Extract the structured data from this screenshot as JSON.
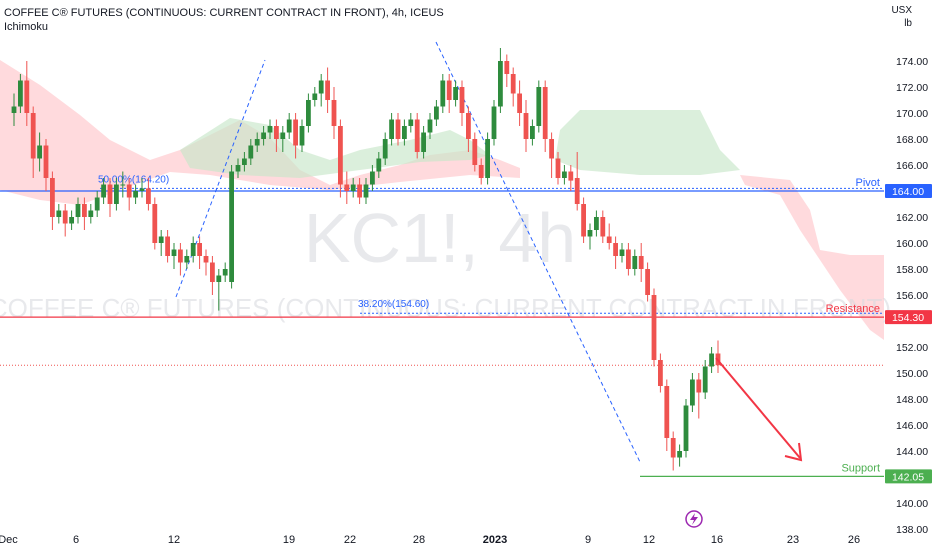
{
  "header": {
    "title": "COFFEE C® FUTURES (CONTINUOUS: CURRENT CONTRACT IN FRONT), 4h, ICEUS",
    "indicator": "Ichimoku",
    "unit_top": "USX",
    "unit_bottom": "lb"
  },
  "watermark": {
    "symbol": "KC1!, 4h",
    "description": "COFFEE C® FUTURES (CONTINUOUS: CURRENT CONTRACT IN FRONT)"
  },
  "colors": {
    "up": "#26a69a",
    "up_candle": "#2e8b3d",
    "down": "#ef5350",
    "pivot": "#2962ff",
    "resistance": "#f23645",
    "support": "#4caf50",
    "cloud_bull": "#c8e6c9",
    "cloud_bear": "#ffcdd2",
    "fib": "#2962ff",
    "arrow": "#f23645"
  },
  "chart_data": {
    "type": "candlestick",
    "title": "COFFEE C® FUTURES (CONTINUOUS: CURRENT CONTRACT IN FRONT), 4h, ICEUS",
    "yaxis": {
      "ticks": [
        "138.00",
        "140.00",
        "142.00",
        "144.00",
        "146.00",
        "148.00",
        "150.00",
        "152.00",
        "154.00",
        "156.00",
        "158.00",
        "160.00",
        "162.00",
        "164.00",
        "166.00",
        "168.00",
        "170.00",
        "172.00",
        "174.00"
      ],
      "ylim": [
        137.0,
        177.0
      ]
    },
    "xaxis": {
      "ticks": [
        "Dec",
        "6",
        "12",
        "19",
        "22",
        "28",
        "2023",
        "9",
        "12",
        "16",
        "23",
        "26"
      ]
    },
    "levels": [
      {
        "name": "Pivot",
        "value": 164.0,
        "label": "164.00"
      },
      {
        "name": "Resistance",
        "value": 154.3,
        "label": "154.30"
      },
      {
        "name": "Support",
        "value": 142.05,
        "label": "142.05"
      }
    ],
    "fibonacci": [
      {
        "label": "50.00%(164.20)",
        "value": 164.2
      },
      {
        "label": "38.20%(154.60)",
        "value": 154.6
      }
    ],
    "last_price": 150.6,
    "candles": [
      {
        "o": 170.0,
        "h": 171.5,
        "c": 170.5,
        "l": 169.0
      },
      {
        "o": 170.5,
        "h": 173.0,
        "c": 172.5,
        "l": 170.0
      },
      {
        "o": 172.5,
        "h": 174.0,
        "c": 170.0,
        "l": 169.0
      },
      {
        "o": 170.0,
        "h": 170.5,
        "c": 166.5,
        "l": 165.0
      },
      {
        "o": 166.5,
        "h": 168.5,
        "c": 167.5,
        "l": 165.5
      },
      {
        "o": 167.5,
        "h": 168.0,
        "c": 165.0,
        "l": 164.0
      },
      {
        "o": 165.0,
        "h": 165.5,
        "c": 162.0,
        "l": 161.0
      },
      {
        "o": 162.0,
        "h": 163.0,
        "c": 162.5,
        "l": 161.5
      },
      {
        "o": 162.5,
        "h": 163.0,
        "c": 161.5,
        "l": 160.5
      },
      {
        "o": 161.5,
        "h": 162.5,
        "c": 162.0,
        "l": 161.0
      },
      {
        "o": 162.0,
        "h": 163.5,
        "c": 163.0,
        "l": 161.5
      },
      {
        "o": 163.0,
        "h": 163.5,
        "c": 162.0,
        "l": 161.0
      },
      {
        "o": 162.0,
        "h": 163.0,
        "c": 162.5,
        "l": 161.5
      },
      {
        "o": 162.5,
        "h": 164.0,
        "c": 163.5,
        "l": 162.0
      },
      {
        "o": 163.5,
        "h": 165.0,
        "c": 164.5,
        "l": 163.0
      },
      {
        "o": 164.5,
        "h": 165.0,
        "c": 163.0,
        "l": 162.0
      },
      {
        "o": 163.0,
        "h": 165.0,
        "c": 164.5,
        "l": 162.5
      },
      {
        "o": 164.5,
        "h": 165.5,
        "c": 164.5,
        "l": 163.5
      },
      {
        "o": 164.5,
        "h": 165.0,
        "c": 163.5,
        "l": 162.5
      },
      {
        "o": 163.5,
        "h": 164.5,
        "c": 164.0,
        "l": 163.0
      },
      {
        "o": 164.0,
        "h": 165.0,
        "c": 164.2,
        "l": 163.5
      },
      {
        "o": 164.2,
        "h": 165.0,
        "c": 163.0,
        "l": 162.5
      },
      {
        "o": 163.0,
        "h": 163.5,
        "c": 160.0,
        "l": 159.5
      },
      {
        "o": 160.0,
        "h": 161.0,
        "c": 160.5,
        "l": 159.0
      },
      {
        "o": 160.5,
        "h": 161.0,
        "c": 159.0,
        "l": 158.5
      },
      {
        "o": 159.0,
        "h": 160.0,
        "c": 159.5,
        "l": 158.0
      },
      {
        "o": 159.5,
        "h": 160.0,
        "c": 158.5,
        "l": 157.5
      },
      {
        "o": 158.5,
        "h": 159.5,
        "c": 159.0,
        "l": 158.0
      },
      {
        "o": 159.0,
        "h": 160.5,
        "c": 160.0,
        "l": 158.5
      },
      {
        "o": 160.0,
        "h": 160.5,
        "c": 159.0,
        "l": 158.0
      },
      {
        "o": 159.0,
        "h": 159.5,
        "c": 158.5,
        "l": 157.5
      },
      {
        "o": 158.5,
        "h": 159.0,
        "c": 157.0,
        "l": 156.0
      },
      {
        "o": 157.0,
        "h": 158.0,
        "c": 157.5,
        "l": 154.8
      },
      {
        "o": 157.5,
        "h": 158.5,
        "c": 158.0,
        "l": 157.0
      },
      {
        "o": 157.0,
        "h": 166.0,
        "c": 165.5,
        "l": 156.5
      },
      {
        "o": 165.5,
        "h": 166.5,
        "c": 166.0,
        "l": 165.0
      },
      {
        "o": 166.0,
        "h": 167.0,
        "c": 166.5,
        "l": 165.5
      },
      {
        "o": 166.5,
        "h": 168.0,
        "c": 167.5,
        "l": 166.0
      },
      {
        "o": 167.5,
        "h": 168.5,
        "c": 168.0,
        "l": 167.0
      },
      {
        "o": 168.0,
        "h": 169.0,
        "c": 168.5,
        "l": 167.5
      },
      {
        "o": 168.5,
        "h": 169.5,
        "c": 169.0,
        "l": 168.0
      },
      {
        "o": 169.0,
        "h": 169.5,
        "c": 168.0,
        "l": 167.0
      },
      {
        "o": 168.0,
        "h": 169.0,
        "c": 168.5,
        "l": 167.0
      },
      {
        "o": 168.5,
        "h": 170.0,
        "c": 169.5,
        "l": 168.0
      },
      {
        "o": 169.5,
        "h": 170.0,
        "c": 167.5,
        "l": 166.5
      },
      {
        "o": 167.5,
        "h": 169.5,
        "c": 169.0,
        "l": 167.0
      },
      {
        "o": 169.0,
        "h": 171.5,
        "c": 171.0,
        "l": 168.5
      },
      {
        "o": 171.0,
        "h": 172.0,
        "c": 171.5,
        "l": 170.5
      },
      {
        "o": 171.5,
        "h": 173.0,
        "c": 172.5,
        "l": 170.5
      },
      {
        "o": 172.5,
        "h": 173.5,
        "c": 171.0,
        "l": 170.0
      },
      {
        "o": 171.0,
        "h": 172.0,
        "c": 169.0,
        "l": 168.0
      },
      {
        "o": 169.0,
        "h": 169.5,
        "c": 164.5,
        "l": 163.5
      },
      {
        "o": 164.5,
        "h": 165.5,
        "c": 164.0,
        "l": 163.0
      },
      {
        "o": 164.0,
        "h": 165.0,
        "c": 164.5,
        "l": 163.5
      },
      {
        "o": 164.5,
        "h": 165.0,
        "c": 163.5,
        "l": 163.0
      },
      {
        "o": 163.5,
        "h": 165.0,
        "c": 164.5,
        "l": 163.0
      },
      {
        "o": 164.5,
        "h": 166.0,
        "c": 165.5,
        "l": 164.0
      },
      {
        "o": 165.5,
        "h": 167.0,
        "c": 166.5,
        "l": 165.0
      },
      {
        "o": 166.5,
        "h": 168.5,
        "c": 168.0,
        "l": 166.0
      },
      {
        "o": 168.0,
        "h": 170.0,
        "c": 169.5,
        "l": 167.5
      },
      {
        "o": 169.5,
        "h": 170.0,
        "c": 168.0,
        "l": 167.5
      },
      {
        "o": 168.0,
        "h": 169.5,
        "c": 169.0,
        "l": 167.5
      },
      {
        "o": 169.0,
        "h": 170.0,
        "c": 169.5,
        "l": 168.5
      },
      {
        "o": 169.5,
        "h": 170.0,
        "c": 167.0,
        "l": 166.5
      },
      {
        "o": 167.0,
        "h": 169.0,
        "c": 168.5,
        "l": 166.5
      },
      {
        "o": 168.5,
        "h": 170.0,
        "c": 169.5,
        "l": 168.0
      },
      {
        "o": 169.5,
        "h": 171.0,
        "c": 170.5,
        "l": 169.0
      },
      {
        "o": 170.5,
        "h": 173.0,
        "c": 172.5,
        "l": 170.0
      },
      {
        "o": 172.5,
        "h": 173.0,
        "c": 171.0,
        "l": 170.0
      },
      {
        "o": 171.0,
        "h": 172.5,
        "c": 172.0,
        "l": 170.5
      },
      {
        "o": 172.0,
        "h": 172.5,
        "c": 170.0,
        "l": 169.0
      },
      {
        "o": 170.0,
        "h": 170.5,
        "c": 168.0,
        "l": 167.0
      },
      {
        "o": 168.0,
        "h": 168.5,
        "c": 166.0,
        "l": 165.5
      },
      {
        "o": 166.0,
        "h": 166.5,
        "c": 165.0,
        "l": 164.5
      },
      {
        "o": 165.0,
        "h": 168.5,
        "c": 168.0,
        "l": 164.5
      },
      {
        "o": 168.0,
        "h": 171.0,
        "c": 170.5,
        "l": 167.5
      },
      {
        "o": 170.5,
        "h": 175.0,
        "c": 174.0,
        "l": 170.0
      },
      {
        "o": 174.0,
        "h": 174.5,
        "c": 173.0,
        "l": 172.0
      },
      {
        "o": 173.0,
        "h": 173.5,
        "c": 171.5,
        "l": 170.5
      },
      {
        "o": 171.5,
        "h": 172.5,
        "c": 170.0,
        "l": 169.0
      },
      {
        "o": 170.0,
        "h": 171.0,
        "c": 168.0,
        "l": 167.0
      },
      {
        "o": 168.0,
        "h": 169.5,
        "c": 169.0,
        "l": 167.5
      },
      {
        "o": 169.0,
        "h": 172.5,
        "c": 172.0,
        "l": 168.5
      },
      {
        "o": 172.0,
        "h": 172.5,
        "c": 168.0,
        "l": 167.0
      },
      {
        "o": 168.0,
        "h": 168.5,
        "c": 166.5,
        "l": 165.0
      },
      {
        "o": 166.5,
        "h": 167.0,
        "c": 165.0,
        "l": 164.5
      },
      {
        "o": 165.0,
        "h": 166.0,
        "c": 165.5,
        "l": 164.5
      },
      {
        "o": 165.5,
        "h": 166.0,
        "c": 164.8,
        "l": 164.0
      },
      {
        "o": 165.0,
        "h": 167.0,
        "c": 163.0,
        "l": 162.5
      },
      {
        "o": 163.0,
        "h": 163.5,
        "c": 160.5,
        "l": 160.0
      },
      {
        "o": 160.5,
        "h": 161.5,
        "c": 161.0,
        "l": 159.5
      },
      {
        "o": 161.0,
        "h": 162.5,
        "c": 162.0,
        "l": 160.5
      },
      {
        "o": 162.0,
        "h": 162.5,
        "c": 160.5,
        "l": 160.0
      },
      {
        "o": 160.5,
        "h": 161.5,
        "c": 160.0,
        "l": 159.5
      },
      {
        "o": 160.0,
        "h": 160.5,
        "c": 159.0,
        "l": 158.0
      },
      {
        "o": 159.0,
        "h": 160.0,
        "c": 159.5,
        "l": 158.5
      },
      {
        "o": 159.5,
        "h": 160.0,
        "c": 158.0,
        "l": 157.5
      },
      {
        "o": 158.0,
        "h": 159.5,
        "c": 159.0,
        "l": 157.5
      },
      {
        "o": 159.0,
        "h": 160.0,
        "c": 158.0,
        "l": 157.0
      },
      {
        "o": 158.0,
        "h": 158.5,
        "c": 156.0,
        "l": 155.5
      },
      {
        "o": 156.0,
        "h": 156.5,
        "c": 151.0,
        "l": 150.5
      },
      {
        "o": 151.0,
        "h": 151.5,
        "c": 149.0,
        "l": 148.5
      },
      {
        "o": 149.0,
        "h": 149.5,
        "c": 145.0,
        "l": 144.0
      },
      {
        "o": 145.0,
        "h": 145.5,
        "c": 143.5,
        "l": 142.5
      },
      {
        "o": 143.5,
        "h": 144.5,
        "c": 144.0,
        "l": 142.8
      },
      {
        "o": 144.0,
        "h": 148.0,
        "c": 147.5,
        "l": 143.5
      },
      {
        "o": 147.5,
        "h": 150.0,
        "c": 149.5,
        "l": 147.0
      },
      {
        "o": 149.5,
        "h": 150.0,
        "c": 148.5,
        "l": 146.5
      },
      {
        "o": 148.5,
        "h": 151.0,
        "c": 150.5,
        "l": 148.0
      },
      {
        "o": 150.5,
        "h": 152.0,
        "c": 151.5,
        "l": 150.0
      },
      {
        "o": 151.5,
        "h": 152.5,
        "c": 150.6,
        "l": 150.0
      }
    ]
  }
}
